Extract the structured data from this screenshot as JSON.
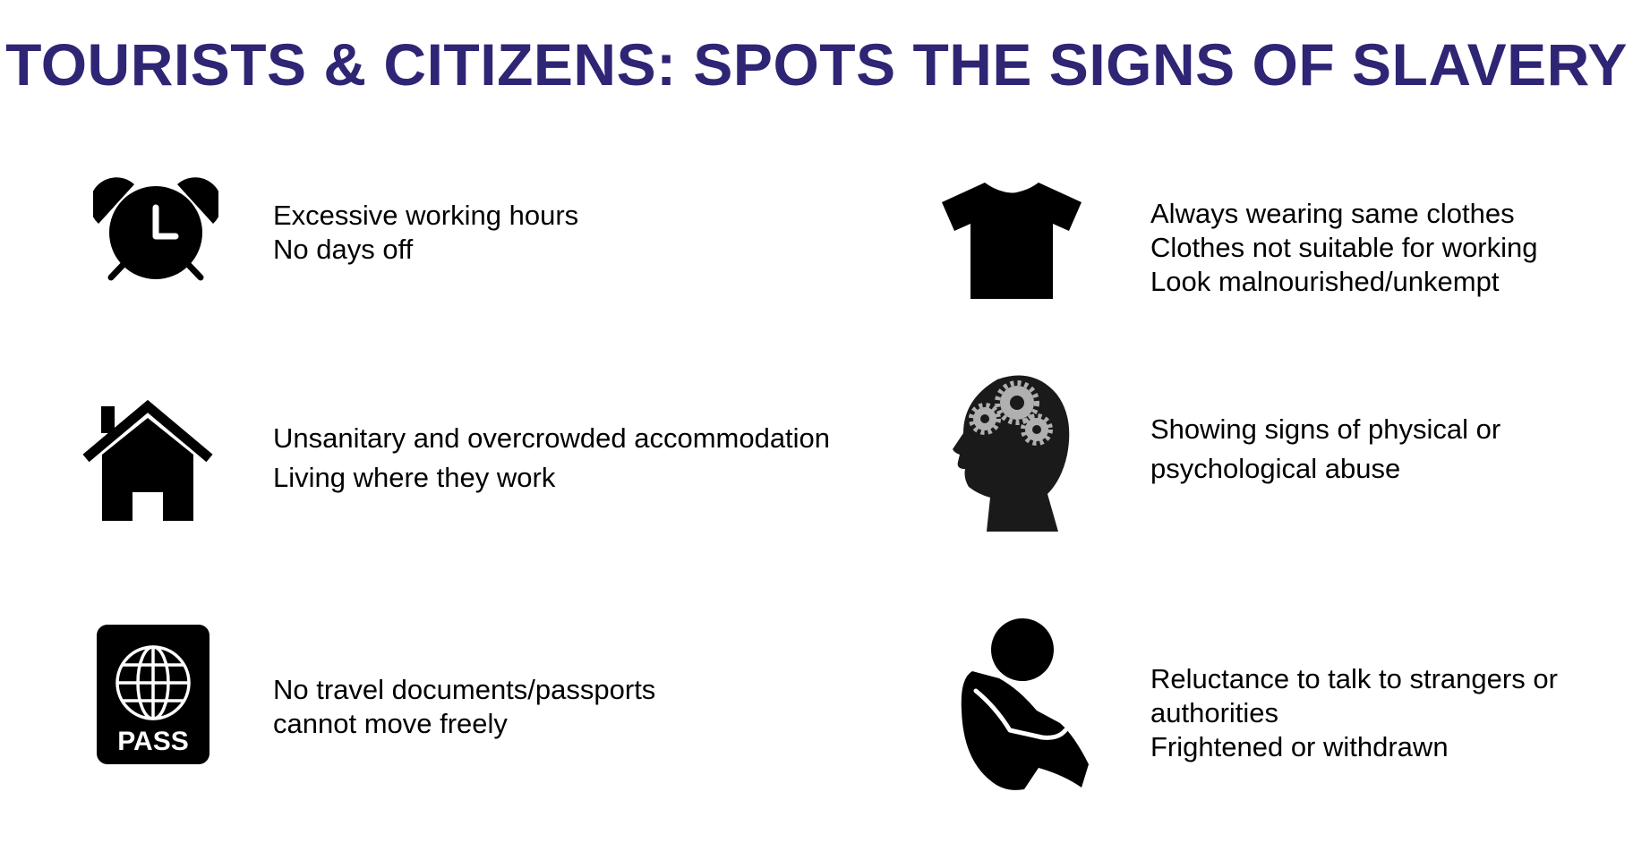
{
  "title": "TOURISTS & CITIZENS: SPOTS THE SIGNS OF SLAVERY",
  "colors": {
    "title": "#2e2575",
    "icon": "#000000",
    "text": "#000000",
    "background": "#ffffff"
  },
  "signs": [
    {
      "icon": "alarm-clock-icon",
      "lines": [
        "Excessive working hours",
        "No days off"
      ]
    },
    {
      "icon": "house-icon",
      "lines": [
        "Unsanitary and overcrowded accommodation",
        "Living where they work"
      ]
    },
    {
      "icon": "passport-icon",
      "icon_label": "PASS",
      "lines": [
        "No travel documents/passports",
        "cannot move freely"
      ]
    },
    {
      "icon": "t-shirt-icon",
      "lines": [
        "Always wearing same clothes",
        "Clothes not suitable for working",
        "Look malnourished/unkempt"
      ]
    },
    {
      "icon": "head-with-gears-icon",
      "lines": [
        "Showing signs of physical or",
        "psychological abuse"
      ]
    },
    {
      "icon": "sitting-person-icon",
      "lines": [
        "Reluctance to talk to strangers or",
        "authorities",
        "Frightened or withdrawn"
      ]
    }
  ]
}
